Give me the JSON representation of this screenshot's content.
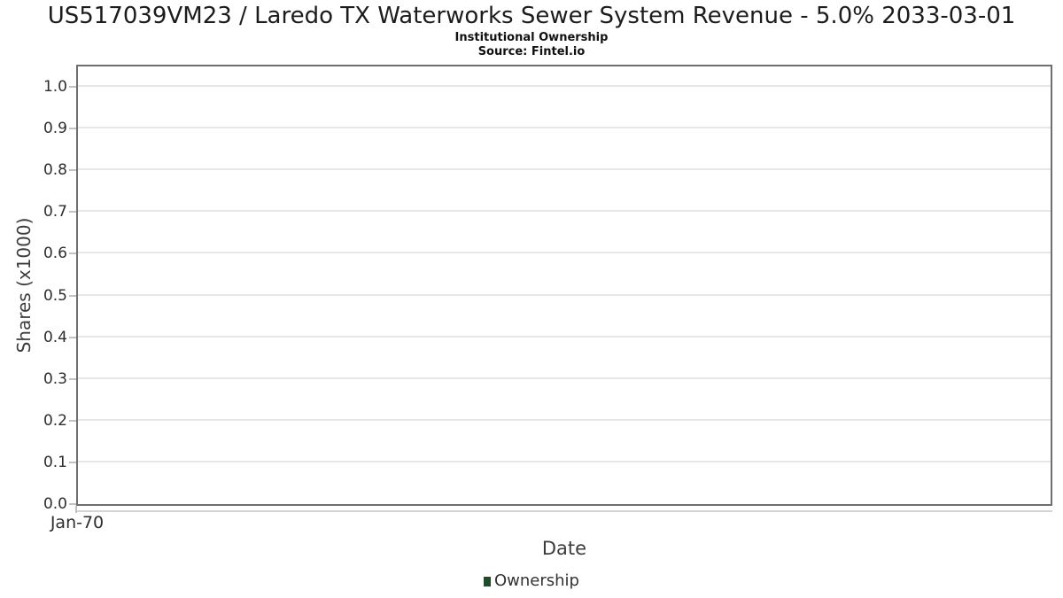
{
  "chart": {
    "title": "US517039VM23 / Laredo TX Waterworks Sewer System Revenue - 5.0% 2033-03-01",
    "subtitle": "Institutional Ownership",
    "source": "Source: Fintel.io",
    "xlabel": "Date",
    "ylabel": "Shares (x1000)",
    "x_ticks": [
      "Jan-70"
    ],
    "y_ticks": [
      "0.0",
      "0.1",
      "0.2",
      "0.3",
      "0.4",
      "0.5",
      "0.6",
      "0.7",
      "0.8",
      "0.9",
      "1.0"
    ],
    "legend": [
      {
        "label": "Ownership",
        "color": "#1e4b2a"
      }
    ],
    "colors": {
      "plot_border": "#6f6f6f",
      "gridline": "#e7e7e7",
      "tick_mark": "#c2c2c2",
      "tick_text": "#2e2e2e",
      "axis_label_text": "#3c3c3c",
      "title_text": "#1c1c1c",
      "legend_marker_green": "#1e4b2a"
    }
  },
  "chart_data": {
    "type": "line",
    "title": "US517039VM23 / Laredo TX Waterworks Sewer System Revenue - 5.0% 2033-03-01",
    "subtitle": "Institutional Ownership",
    "source": "Source: Fintel.io",
    "xlabel": "Date",
    "ylabel": "Shares (x1000)",
    "x_tick_labels": [
      "Jan-70"
    ],
    "y_tick_labels": [
      "0.0",
      "0.1",
      "0.2",
      "0.3",
      "0.4",
      "0.5",
      "0.6",
      "0.7",
      "0.8",
      "0.9",
      "1.0"
    ],
    "ylim": [
      0.0,
      1.06
    ],
    "grid": true,
    "legend_position": "bottom",
    "series": [
      {
        "name": "Ownership",
        "x": [],
        "values": []
      }
    ],
    "note": "Plot area is empty; no data points are rendered."
  }
}
